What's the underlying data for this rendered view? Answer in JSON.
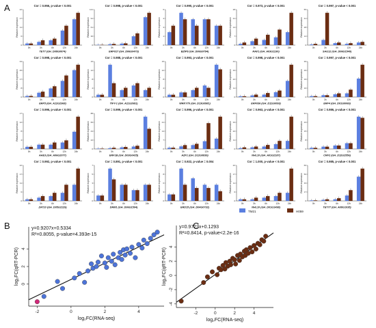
{
  "figure": {
    "panel_a_label": "A",
    "panel_b_label": "B",
    "panel_c_label": "C",
    "colors": {
      "tm21": "#5b7fe0",
      "h059": "#6b2d12",
      "line": "#111111",
      "dotB": "#4d74d9",
      "dotC": "#6b2d12"
    }
  },
  "chart_data": [
    {
      "type": "bar",
      "panel": "A",
      "categories": [
        "0h",
        "3h",
        "6h",
        "12h",
        "24h"
      ],
      "ylabel": "Relative expression",
      "legend": {
        "placement": "bottom-right",
        "entries": [
          "TM21",
          "H059"
        ]
      },
      "subplots": [
        {
          "corr": "Cor = 0.956, p-value < 0.001",
          "gene": "TET7 (GH_D08G0074)",
          "tm21": [
            1,
            2,
            3,
            9,
            16
          ],
          "h059": [
            1,
            3,
            4,
            12,
            20
          ]
        },
        {
          "corr": "Cor = 0.998, p-value < 0.001",
          "gene": "ERF017 (GH_D06G0473)",
          "tm21": [
            1,
            3,
            5,
            30,
            95
          ],
          "h059": [
            1,
            4,
            6,
            40,
            110
          ]
        },
        {
          "corr": "Cor = 0.990, p-value < 0.001",
          "gene": "BZIP9 (GH_D06G0794)",
          "tm21": [
            2,
            5,
            4,
            4,
            3
          ],
          "h059": [
            3,
            4,
            3,
            4,
            3
          ]
        },
        {
          "corr": "Cor = 0.973, p-value < 0.001",
          "gene": "RAV1 (GH_A03G1130)",
          "tm21": [
            1,
            3,
            4,
            6,
            10
          ],
          "h059": [
            2,
            5,
            8,
            12,
            25
          ]
        },
        {
          "corr": "Cor = 0.997, p-value < 0.001",
          "gene": "SAG12 (GH_D06G1540)",
          "tm21": [
            1,
            8,
            3,
            2,
            4
          ],
          "h059": [
            2,
            50,
            4,
            3,
            5
          ]
        },
        {
          "corr": "Cor = 0.998, p-value < 0.001",
          "gene": "ERF5 (GH_A12G2368)",
          "tm21": [
            1,
            4,
            8,
            15,
            25
          ],
          "h059": [
            1,
            5,
            10,
            20,
            30
          ]
        },
        {
          "corr": "Cor = 0.988, p-value < 0.001",
          "gene": "TIFY-1 (GH_A11G2691)",
          "tm21": [
            1,
            14,
            3,
            5,
            3
          ],
          "h059": [
            1,
            6,
            4,
            6,
            4
          ]
        },
        {
          "corr": "Cor = 0.993, p-value < 0.001",
          "gene": "WRKY70 (GH_D13G0981)",
          "tm21": [
            1,
            2,
            3,
            5,
            14
          ],
          "h059": [
            1,
            2,
            4,
            4,
            12
          ]
        },
        {
          "corr": "Cor = 0.998, p-value < 0.001",
          "gene": "ERF036 (GH_D11G0093)",
          "tm21": [
            1,
            2,
            3,
            6,
            20
          ],
          "h059": [
            1,
            3,
            5,
            8,
            40
          ]
        },
        {
          "corr": "Cor = 0.997, p-value < 0.001",
          "gene": "ERF4 (GH_D01G0069)",
          "tm21": [
            1,
            2,
            3,
            4,
            20
          ],
          "h059": [
            1,
            2,
            4,
            8,
            35
          ]
        },
        {
          "corr": "Cor = 0.996, p-value < 0.001",
          "gene": "AAE3 (GH_A06G2077)",
          "tm21": [
            1,
            2,
            2,
            3,
            8
          ],
          "h059": [
            1,
            2,
            3,
            4,
            15
          ]
        },
        {
          "corr": "Cor = 0.999, p-value < 0.001",
          "gene": "ERF1B (GH_D03G0425)",
          "tm21": [
            1,
            2,
            4,
            6,
            80
          ],
          "h059": [
            1,
            3,
            5,
            8,
            50
          ]
        },
        {
          "corr": "Cor = 0.996, p-value < 0.001",
          "gene": "AZF1 (GH_D12G0839)",
          "tm21": [
            1,
            2,
            3,
            6,
            8
          ],
          "h059": [
            1,
            3,
            4,
            20,
            25
          ]
        },
        {
          "corr": "Cor = 0.963, p-value < 0.001",
          "gene": "NHL10 (GH_A01G2187)",
          "tm21": [
            1,
            2,
            3,
            6,
            10
          ],
          "h059": [
            2,
            3,
            5,
            10,
            40
          ]
        },
        {
          "corr": "Cor = 0.986, p-value < 0.001",
          "gene": "CRF2 (GH_D12G2556)",
          "tm21": [
            1,
            2,
            3,
            5,
            28
          ],
          "h059": [
            1,
            2,
            3,
            5,
            27
          ]
        },
        {
          "corr": "Cor = 0.992, p-value < 0.001",
          "gene": "ZAT10 (GH_D05G2129)",
          "tm21": [
            1,
            2,
            3,
            5,
            10
          ],
          "h059": [
            1,
            3,
            5,
            10,
            20
          ]
        },
        {
          "corr": "Cor = 0.891, p-value < 0.001",
          "gene": "DRM1 (GH_D06G1504)",
          "tm21": [
            1,
            6,
            3,
            2,
            3
          ],
          "h059": [
            1,
            4,
            3,
            2,
            3
          ]
        },
        {
          "corr": "Cor = 0.922, p-value = 0.004",
          "gene": "ERD15 (GH_D04G0732)",
          "tm21": [
            2,
            10,
            7,
            5,
            5
          ],
          "h059": [
            2,
            5,
            4,
            4,
            3
          ]
        },
        {
          "corr": "Cor = 1.000, p-value < 0.001",
          "gene": "NHL10 (GH_D01G1498)",
          "tm21": [
            1,
            1,
            2,
            3,
            5
          ],
          "h059": [
            1,
            2,
            3,
            5,
            20
          ]
        },
        {
          "corr": "Cor = 0.985, p-value < 0.001",
          "gene": "TET77 (GH_A08G1035)",
          "tm21": [
            1,
            2,
            3,
            10,
            45
          ],
          "h059": [
            1,
            3,
            5,
            20,
            60
          ]
        }
      ]
    },
    {
      "type": "scatter",
      "panel": "B",
      "equation": "y=0.9207x+0.5334",
      "r2": "R²=0.8055, p-value=4.393e-15",
      "xlabel": "log₂FC(RNA-seq)",
      "ylabel": "log₂FC(qRT-PCR)",
      "xlim": [
        -2.5,
        5.5
      ],
      "ylim": [
        -2.5,
        6.5
      ],
      "xticks": [
        -2,
        0,
        2,
        4
      ],
      "yticks": [
        0,
        2,
        4
      ],
      "fit": {
        "slope": 0.9207,
        "intercept": 0.5334
      },
      "x": [
        -2,
        -1.6,
        -0.8,
        -0.5,
        0.2,
        0.5,
        0.8,
        1.0,
        1.2,
        1.3,
        1.5,
        1.6,
        1.8,
        2.0,
        2.1,
        2.2,
        2.4,
        2.5,
        2.6,
        2.8,
        2.9,
        3.0,
        3.1,
        3.2,
        3.3,
        3.5,
        3.6,
        3.8,
        4.0,
        4.2,
        4.3,
        4.5,
        4.7,
        4.9,
        5.1
      ],
      "y": [
        -2,
        -1.4,
        0.3,
        -0.5,
        0.7,
        1.2,
        0.2,
        1.5,
        2.3,
        1.8,
        2.0,
        2.5,
        3.2,
        2.4,
        1.9,
        3.0,
        2.6,
        3.4,
        2.2,
        3.0,
        3.6,
        2.8,
        3.9,
        3.3,
        4.0,
        3.5,
        4.2,
        3.0,
        4.5,
        4.1,
        5.0,
        4.6,
        5.2,
        5.6,
        5.9
      ],
      "highlight_index": 0
    },
    {
      "type": "scatter",
      "panel": "C",
      "equation": "y=0.9723x+0.1293",
      "r2": "R²=0.8414, p-value<2.2e-16",
      "xlabel": "log₂FC(RNA-seq)",
      "ylabel": "log₂FC(qRT-PCR)",
      "xlim": [
        -4,
        6
      ],
      "ylim": [
        -4.5,
        7
      ],
      "xticks": [
        -2,
        0,
        2,
        4
      ],
      "yticks": [
        -4,
        -2,
        0,
        2,
        4
      ],
      "fit": {
        "slope": 0.9723,
        "intercept": 0.1293
      },
      "x": [
        -3.5,
        -1.2,
        -0.8,
        -0.3,
        0.2,
        0.4,
        0.6,
        0.8,
        1.0,
        1.1,
        1.3,
        1.5,
        1.6,
        1.8,
        2.0,
        2.1,
        2.3,
        2.5,
        2.6,
        2.8,
        3.0,
        3.1,
        3.2,
        3.4,
        3.6,
        3.8,
        4.0,
        4.2,
        4.4,
        4.6,
        4.8,
        5.0,
        5.2
      ],
      "y": [
        -3.6,
        -1.0,
        -0.2,
        0.5,
        0.1,
        1.0,
        0.8,
        1.4,
        0.9,
        1.8,
        1.3,
        2.0,
        1.5,
        2.4,
        2.2,
        1.6,
        2.8,
        2.1,
        3.0,
        2.6,
        3.4,
        2.8,
        3.6,
        3.1,
        3.9,
        3.3,
        4.2,
        3.7,
        4.5,
        4.3,
        5.0,
        4.8,
        5.5
      ]
    }
  ]
}
